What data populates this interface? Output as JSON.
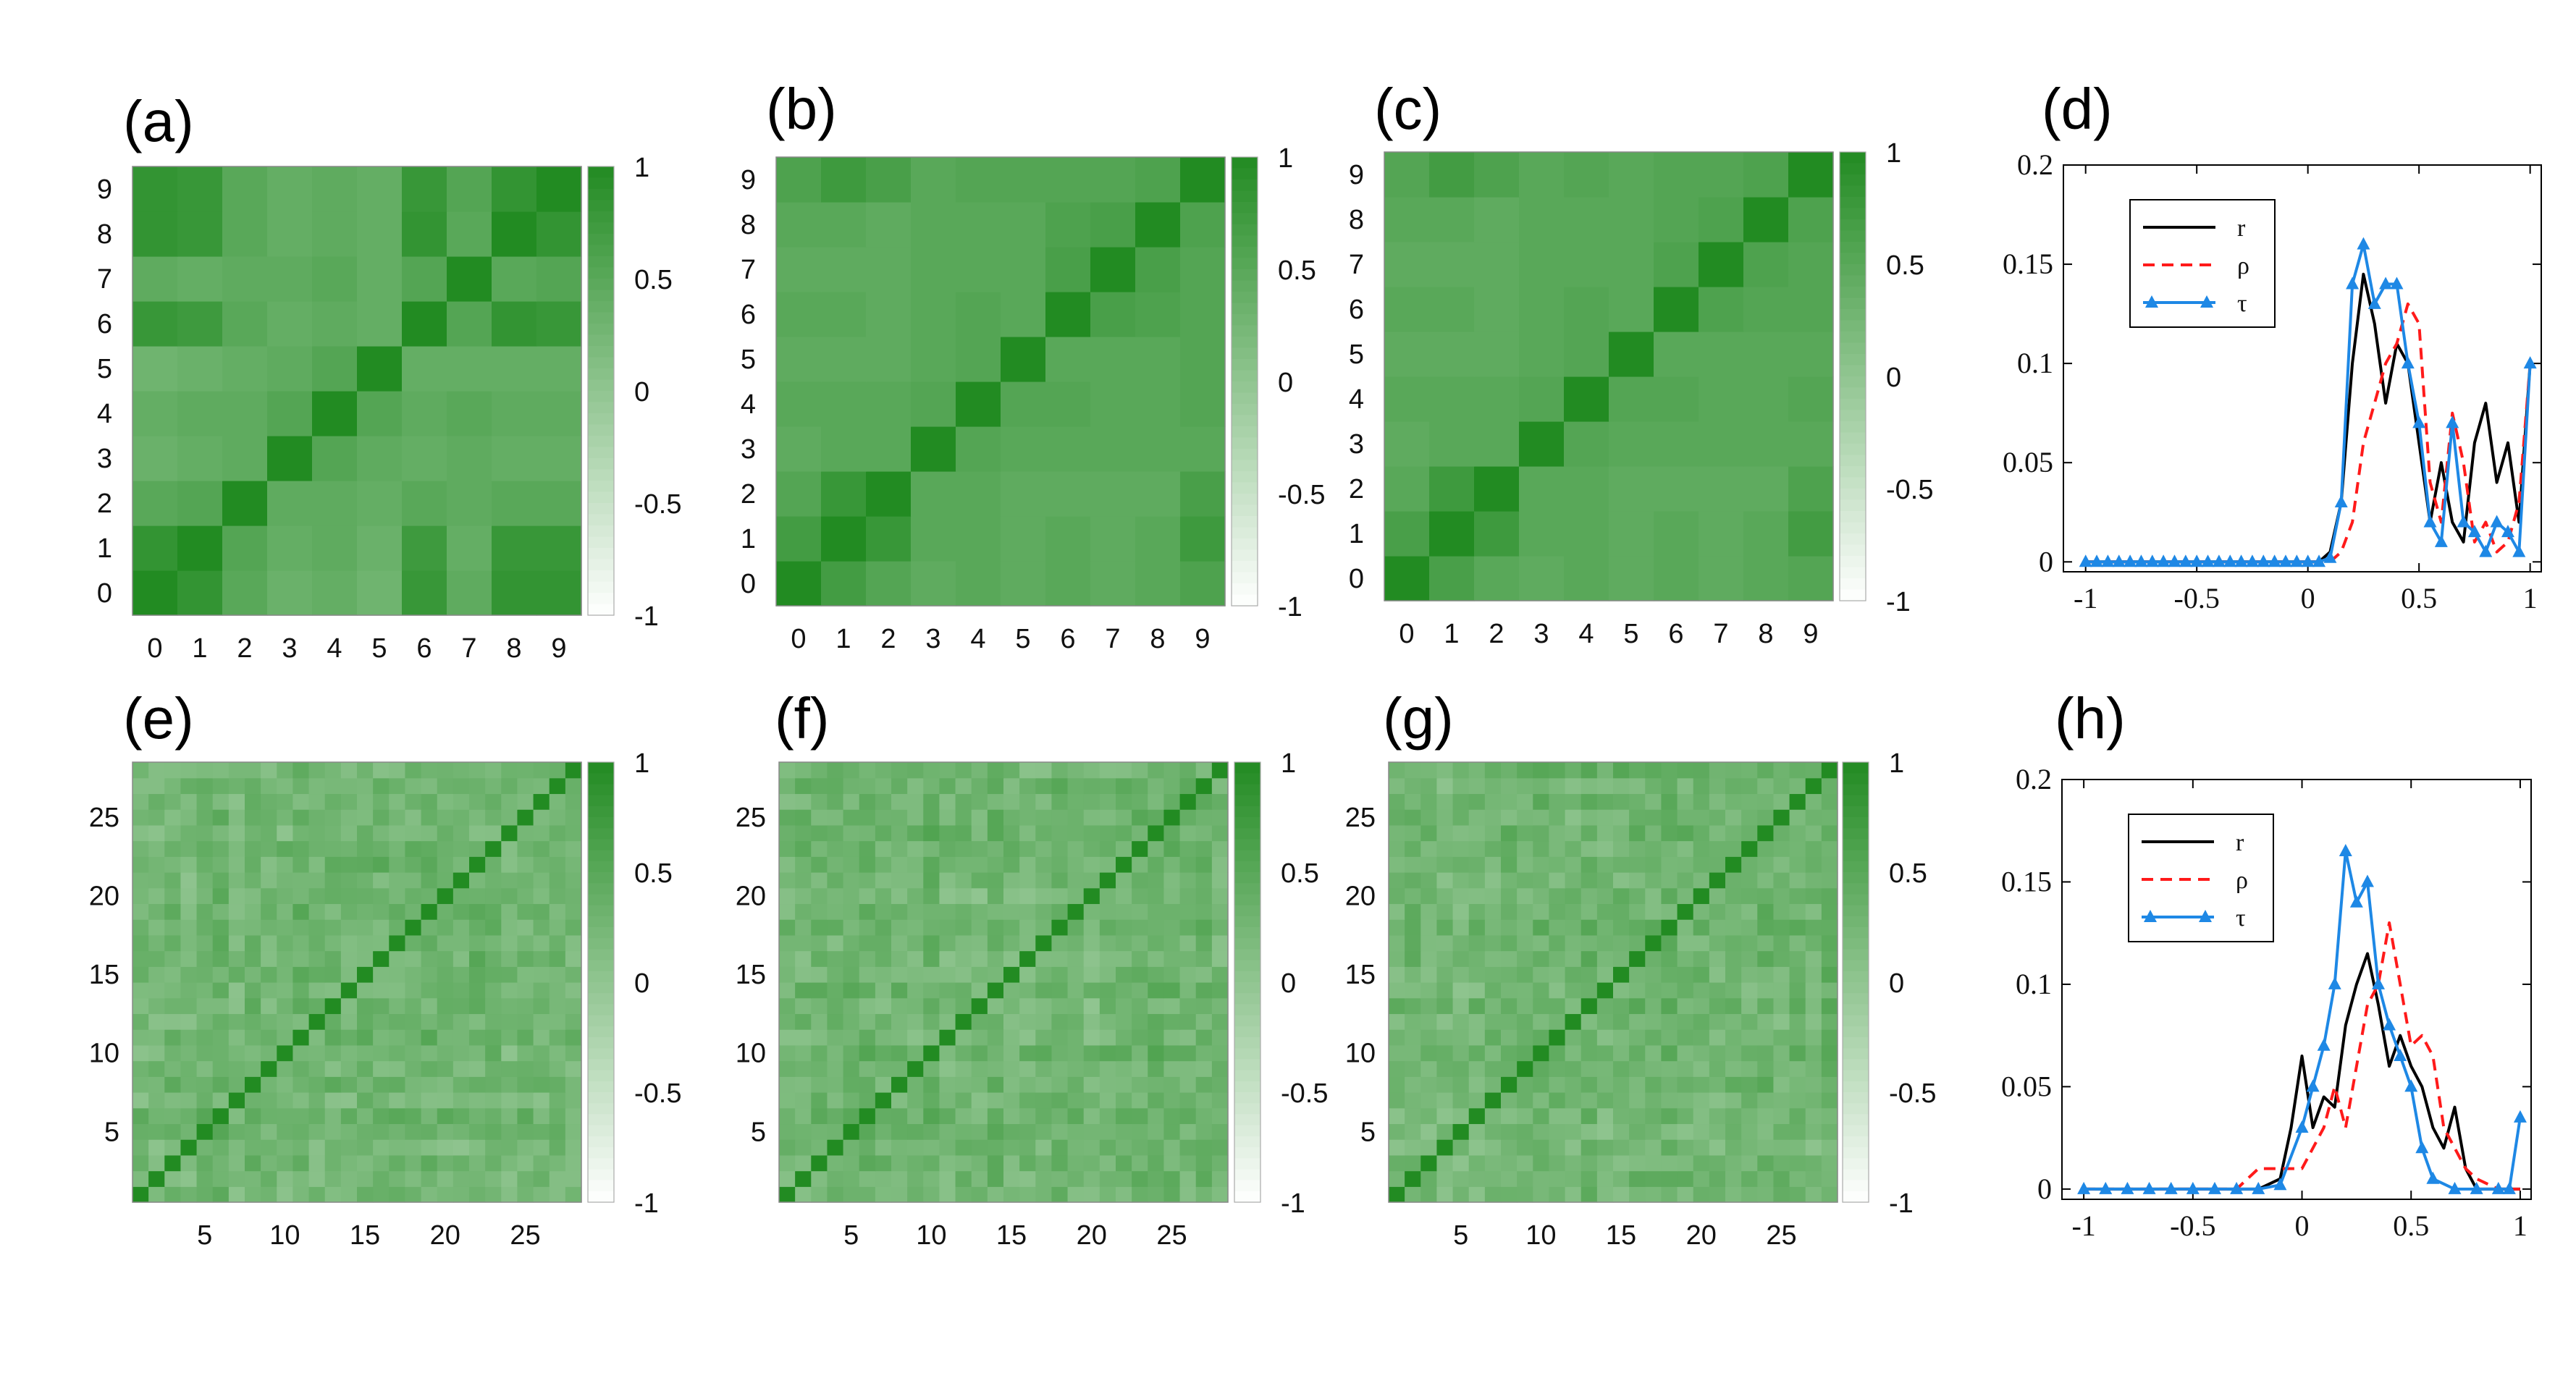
{
  "colors": {
    "scale_low": "#ffffff",
    "scale_high": "#228b22",
    "r": "#000000",
    "rho": "#ff1a1a",
    "tau": "#1e88e5"
  },
  "chart_data": [
    {
      "type": "heatmap",
      "label": "(a)",
      "n": 10,
      "ticks": [
        "0",
        "1",
        "2",
        "3",
        "4",
        "5",
        "6",
        "7",
        "8",
        "9"
      ],
      "colorbar": {
        "range": [
          -1,
          1
        ],
        "ticks": [
          "1",
          "0.5",
          "0",
          "-0.5",
          "-1"
        ]
      },
      "matrix": [
        [
          1.0,
          0.85,
          0.5,
          0.35,
          0.4,
          0.3,
          0.8,
          0.45,
          0.85,
          0.85
        ],
        [
          0.85,
          1.0,
          0.55,
          0.4,
          0.45,
          0.35,
          0.75,
          0.4,
          0.8,
          0.8
        ],
        [
          0.5,
          0.55,
          1.0,
          0.45,
          0.45,
          0.4,
          0.5,
          0.45,
          0.5,
          0.5
        ],
        [
          0.35,
          0.4,
          0.45,
          1.0,
          0.55,
          0.45,
          0.4,
          0.45,
          0.4,
          0.4
        ],
        [
          0.4,
          0.45,
          0.45,
          0.55,
          1.0,
          0.55,
          0.45,
          0.5,
          0.45,
          0.45
        ],
        [
          0.3,
          0.35,
          0.4,
          0.45,
          0.55,
          1.0,
          0.4,
          0.4,
          0.4,
          0.4
        ],
        [
          0.8,
          0.75,
          0.5,
          0.4,
          0.45,
          0.4,
          1.0,
          0.55,
          0.85,
          0.8
        ],
        [
          0.45,
          0.4,
          0.45,
          0.45,
          0.5,
          0.4,
          0.55,
          1.0,
          0.5,
          0.55
        ],
        [
          0.85,
          0.8,
          0.5,
          0.4,
          0.45,
          0.4,
          0.85,
          0.5,
          1.0,
          0.85
        ],
        [
          0.85,
          0.8,
          0.5,
          0.4,
          0.45,
          0.4,
          0.8,
          0.55,
          0.85,
          1.0
        ]
      ]
    },
    {
      "type": "heatmap",
      "label": "(b)",
      "n": 10,
      "ticks": [
        "0",
        "1",
        "2",
        "3",
        "4",
        "5",
        "6",
        "7",
        "8",
        "9"
      ],
      "colorbar": {
        "range": [
          -1,
          1
        ],
        "ticks": [
          "1",
          "0.5",
          "0",
          "-0.5",
          "-1"
        ]
      },
      "matrix": [
        [
          1.0,
          0.7,
          0.55,
          0.45,
          0.5,
          0.45,
          0.5,
          0.45,
          0.5,
          0.6
        ],
        [
          0.7,
          1.0,
          0.8,
          0.5,
          0.5,
          0.45,
          0.5,
          0.45,
          0.5,
          0.75
        ],
        [
          0.55,
          0.8,
          1.0,
          0.5,
          0.5,
          0.45,
          0.45,
          0.45,
          0.45,
          0.65
        ],
        [
          0.45,
          0.5,
          0.5,
          1.0,
          0.55,
          0.5,
          0.5,
          0.5,
          0.5,
          0.5
        ],
        [
          0.5,
          0.5,
          0.5,
          0.55,
          1.0,
          0.55,
          0.55,
          0.5,
          0.5,
          0.55
        ],
        [
          0.45,
          0.45,
          0.45,
          0.5,
          0.55,
          1.0,
          0.5,
          0.5,
          0.5,
          0.55
        ],
        [
          0.5,
          0.5,
          0.45,
          0.5,
          0.55,
          0.5,
          1.0,
          0.65,
          0.6,
          0.55
        ],
        [
          0.45,
          0.45,
          0.45,
          0.5,
          0.5,
          0.5,
          0.65,
          1.0,
          0.65,
          0.55
        ],
        [
          0.5,
          0.5,
          0.45,
          0.5,
          0.5,
          0.5,
          0.6,
          0.65,
          1.0,
          0.6
        ],
        [
          0.6,
          0.75,
          0.65,
          0.5,
          0.55,
          0.55,
          0.55,
          0.55,
          0.6,
          1.0
        ]
      ]
    },
    {
      "type": "heatmap",
      "label": "(c)",
      "n": 10,
      "ticks": [
        "0",
        "1",
        "2",
        "3",
        "4",
        "5",
        "6",
        "7",
        "8",
        "9"
      ],
      "colorbar": {
        "range": [
          -1,
          1
        ],
        "ticks": [
          "1",
          "0.5",
          "0",
          "-0.5",
          "-1"
        ]
      },
      "matrix": [
        [
          1.0,
          0.65,
          0.5,
          0.45,
          0.5,
          0.45,
          0.5,
          0.45,
          0.5,
          0.55
        ],
        [
          0.65,
          1.0,
          0.75,
          0.5,
          0.5,
          0.45,
          0.5,
          0.45,
          0.5,
          0.7
        ],
        [
          0.5,
          0.75,
          1.0,
          0.5,
          0.5,
          0.45,
          0.45,
          0.45,
          0.45,
          0.6
        ],
        [
          0.45,
          0.5,
          0.5,
          1.0,
          0.55,
          0.5,
          0.5,
          0.5,
          0.5,
          0.5
        ],
        [
          0.5,
          0.5,
          0.5,
          0.55,
          1.0,
          0.55,
          0.55,
          0.5,
          0.5,
          0.55
        ],
        [
          0.45,
          0.45,
          0.45,
          0.5,
          0.55,
          1.0,
          0.5,
          0.5,
          0.5,
          0.5
        ],
        [
          0.5,
          0.5,
          0.45,
          0.5,
          0.55,
          0.5,
          1.0,
          0.6,
          0.55,
          0.55
        ],
        [
          0.45,
          0.45,
          0.45,
          0.5,
          0.5,
          0.5,
          0.6,
          1.0,
          0.6,
          0.55
        ],
        [
          0.5,
          0.5,
          0.45,
          0.5,
          0.5,
          0.5,
          0.55,
          0.6,
          1.0,
          0.6
        ],
        [
          0.55,
          0.7,
          0.6,
          0.5,
          0.55,
          0.5,
          0.55,
          0.55,
          0.6,
          1.0
        ]
      ]
    },
    {
      "type": "line",
      "label": "(d)",
      "xlim": [
        -1.1,
        1.05
      ],
      "ylim": [
        -0.005,
        0.2
      ],
      "xticks": [
        -1,
        -0.5,
        0,
        0.5,
        1
      ],
      "xtick_labels": [
        "-1",
        "-0.5",
        "0",
        "0.5",
        "1"
      ],
      "yticks": [
        0,
        0.05,
        0.1,
        0.15,
        0.2
      ],
      "ytick_labels": [
        "0",
        "0.05",
        "0.1",
        "0.15",
        "0.2"
      ],
      "legend": {
        "position": "top-left",
        "entries": [
          "r",
          "ρ",
          "τ"
        ]
      },
      "series": [
        {
          "name": "r",
          "style": "solid",
          "x": [
            -1,
            0,
            0.05,
            0.1,
            0.15,
            0.2,
            0.25,
            0.3,
            0.35,
            0.4,
            0.45,
            0.5,
            0.55,
            0.6,
            0.65,
            0.7,
            0.75,
            0.8,
            0.85,
            0.9,
            0.95,
            1
          ],
          "y": [
            0,
            0,
            0,
            0.005,
            0.03,
            0.1,
            0.145,
            0.12,
            0.08,
            0.11,
            0.1,
            0.06,
            0.02,
            0.05,
            0.02,
            0.01,
            0.06,
            0.08,
            0.04,
            0.06,
            0.02,
            0.1
          ]
        },
        {
          "name": "ρ",
          "style": "dashed",
          "x": [
            -1,
            0,
            0.05,
            0.1,
            0.15,
            0.2,
            0.25,
            0.3,
            0.35,
            0.4,
            0.45,
            0.5,
            0.55,
            0.6,
            0.65,
            0.7,
            0.75,
            0.8,
            0.85,
            0.9,
            0.95,
            1
          ],
          "y": [
            0,
            0,
            0,
            0,
            0.005,
            0.02,
            0.06,
            0.08,
            0.1,
            0.11,
            0.13,
            0.12,
            0.04,
            0.02,
            0.075,
            0.05,
            0.01,
            0.02,
            0.005,
            0.01,
            0.03,
            0.1
          ]
        },
        {
          "name": "τ",
          "style": "solid-triangle",
          "x": [
            -1,
            -0.95,
            -0.9,
            -0.85,
            -0.8,
            -0.75,
            -0.7,
            -0.65,
            -0.6,
            -0.55,
            -0.5,
            -0.45,
            -0.4,
            -0.35,
            -0.3,
            -0.25,
            -0.2,
            -0.15,
            -0.1,
            -0.05,
            0,
            0.05,
            0.1,
            0.15,
            0.2,
            0.25,
            0.3,
            0.35,
            0.4,
            0.45,
            0.5,
            0.55,
            0.6,
            0.65,
            0.7,
            0.75,
            0.8,
            0.85,
            0.9,
            0.95,
            1
          ],
          "y": [
            0,
            0,
            0,
            0,
            0,
            0,
            0,
            0,
            0,
            0,
            0,
            0,
            0,
            0,
            0,
            0,
            0,
            0,
            0,
            0,
            0,
            0,
            0.002,
            0.03,
            0.14,
            0.16,
            0.13,
            0.14,
            0.14,
            0.1,
            0.07,
            0.02,
            0.01,
            0.07,
            0.02,
            0.015,
            0.005,
            0.02,
            0.015,
            0.005,
            0.1
          ]
        }
      ]
    },
    {
      "type": "heatmap",
      "label": "(e)",
      "n": 28,
      "ticks_at": [
        5,
        10,
        15,
        20,
        25
      ],
      "tick_labels": [
        "5",
        "10",
        "15",
        "20",
        "25"
      ],
      "seed": 11,
      "colorbar": {
        "range": [
          -1,
          1
        ],
        "ticks": [
          "1",
          "0.5",
          "0",
          "-0.5",
          "-1"
        ]
      }
    },
    {
      "type": "heatmap",
      "label": "(f)",
      "n": 28,
      "ticks_at": [
        5,
        10,
        15,
        20,
        25
      ],
      "tick_labels": [
        "5",
        "10",
        "15",
        "20",
        "25"
      ],
      "seed": 23,
      "colorbar": {
        "range": [
          -1,
          1
        ],
        "ticks": [
          "1",
          "0.5",
          "0",
          "-0.5",
          "-1"
        ]
      }
    },
    {
      "type": "heatmap",
      "label": "(g)",
      "n": 28,
      "ticks_at": [
        5,
        10,
        15,
        20,
        25
      ],
      "tick_labels": [
        "5",
        "10",
        "15",
        "20",
        "25"
      ],
      "seed": 37,
      "colorbar": {
        "range": [
          -1,
          1
        ],
        "ticks": [
          "1",
          "0.5",
          "0",
          "-0.5",
          "-1"
        ]
      }
    },
    {
      "type": "line",
      "label": "(h)",
      "xlim": [
        -1.1,
        1.05
      ],
      "ylim": [
        -0.005,
        0.2
      ],
      "xticks": [
        -1,
        -0.5,
        0,
        0.5,
        1
      ],
      "xtick_labels": [
        "-1",
        "-0.5",
        "0",
        "0.5",
        "1"
      ],
      "yticks": [
        0,
        0.05,
        0.1,
        0.15,
        0.2
      ],
      "ytick_labels": [
        "0",
        "0.05",
        "0.1",
        "0.15",
        "0.2"
      ],
      "legend": {
        "position": "top-left",
        "entries": [
          "r",
          "ρ",
          "τ"
        ]
      },
      "series": [
        {
          "name": "r",
          "style": "solid",
          "x": [
            -1,
            -0.2,
            -0.1,
            -0.05,
            0,
            0.05,
            0.1,
            0.15,
            0.2,
            0.25,
            0.3,
            0.35,
            0.4,
            0.45,
            0.5,
            0.55,
            0.6,
            0.65,
            0.7,
            0.75,
            0.8,
            0.9,
            0.95,
            1
          ],
          "y": [
            0,
            0,
            0.005,
            0.03,
            0.065,
            0.03,
            0.045,
            0.04,
            0.08,
            0.1,
            0.115,
            0.09,
            0.06,
            0.075,
            0.06,
            0.05,
            0.03,
            0.02,
            0.04,
            0.01,
            0,
            0,
            0,
            0
          ]
        },
        {
          "name": "ρ",
          "style": "dashed",
          "x": [
            -1,
            -0.3,
            -0.2,
            -0.1,
            0,
            0.05,
            0.1,
            0.15,
            0.2,
            0.25,
            0.3,
            0.35,
            0.4,
            0.45,
            0.5,
            0.55,
            0.6,
            0.65,
            0.7,
            0.75,
            0.8,
            0.9,
            1
          ],
          "y": [
            0,
            0,
            0.01,
            0.01,
            0.01,
            0.02,
            0.03,
            0.05,
            0.03,
            0.06,
            0.09,
            0.1,
            0.13,
            0.1,
            0.07,
            0.075,
            0.065,
            0.03,
            0.02,
            0.01,
            0.005,
            0,
            0
          ]
        },
        {
          "name": "τ",
          "style": "solid-triangle",
          "x": [
            -1,
            -0.9,
            -0.8,
            -0.7,
            -0.6,
            -0.5,
            -0.4,
            -0.3,
            -0.2,
            -0.1,
            0,
            0.05,
            0.1,
            0.15,
            0.2,
            0.25,
            0.3,
            0.35,
            0.4,
            0.45,
            0.5,
            0.55,
            0.6,
            0.7,
            0.8,
            0.9,
            0.95,
            1
          ],
          "y": [
            0,
            0,
            0,
            0,
            0,
            0,
            0,
            0,
            0,
            0.002,
            0.03,
            0.05,
            0.07,
            0.1,
            0.165,
            0.14,
            0.15,
            0.1,
            0.08,
            0.065,
            0.05,
            0.02,
            0.005,
            0,
            0,
            0,
            0,
            0.035
          ]
        }
      ]
    }
  ]
}
